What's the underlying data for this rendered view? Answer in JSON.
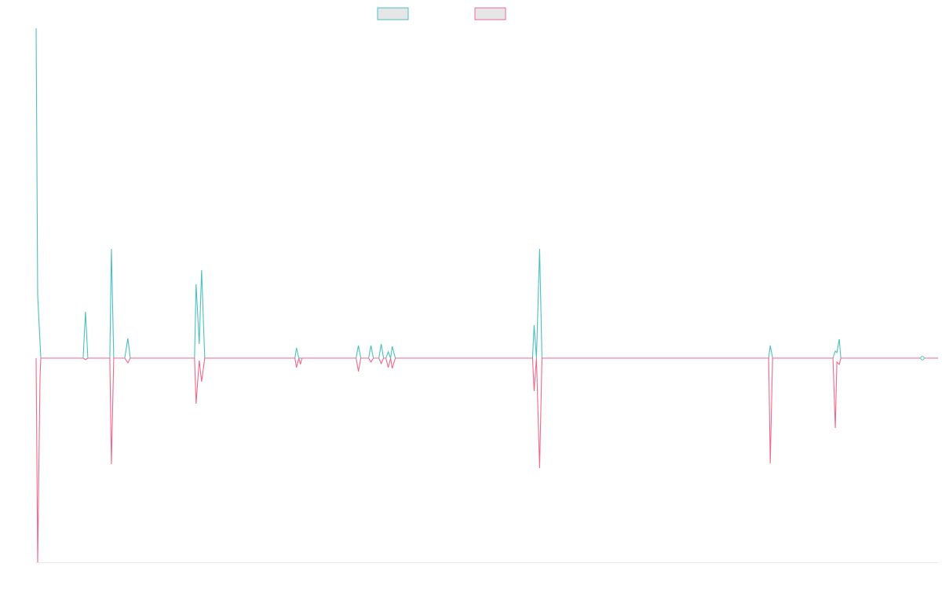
{
  "chart_data": {
    "type": "line",
    "title": "",
    "xlabel": "",
    "ylabel": "",
    "grid": false,
    "legend": "top-center",
    "x_range": [
      0,
      1150
    ],
    "y_range": [
      -260,
      420
    ],
    "series": [
      {
        "color": "#4bc0c0",
        "fill": "#e6e6e6",
        "points": [
          [
            0,
            420
          ],
          [
            2,
            80
          ],
          [
            6,
            0
          ],
          [
            60,
            0
          ],
          [
            63,
            59
          ],
          [
            66,
            0
          ],
          [
            86,
            0
          ],
          [
            90,
            0
          ],
          [
            94,
            0
          ],
          [
            96,
            139
          ],
          [
            99,
            0
          ],
          [
            113,
            0
          ],
          [
            117,
            25
          ],
          [
            120,
            0
          ],
          [
            202,
            0
          ],
          [
            204,
            94
          ],
          [
            208,
            18
          ],
          [
            211,
            112
          ],
          [
            215,
            0
          ],
          [
            330,
            0
          ],
          [
            332,
            13
          ],
          [
            335,
            0
          ],
          [
            337,
            0
          ],
          [
            339,
            0
          ],
          [
            408,
            0
          ],
          [
            411,
            16
          ],
          [
            414,
            0
          ],
          [
            424,
            0
          ],
          [
            427,
            16
          ],
          [
            430,
            0
          ],
          [
            437,
            0
          ],
          [
            440,
            18
          ],
          [
            443,
            0
          ],
          [
            446,
            0
          ],
          [
            449,
            8
          ],
          [
            452,
            0
          ],
          [
            454,
            15
          ],
          [
            458,
            0
          ],
          [
            633,
            0
          ],
          [
            635,
            42
          ],
          [
            638,
            0
          ],
          [
            642,
            139
          ],
          [
            645,
            0
          ],
          [
            934,
            0
          ],
          [
            936,
            16
          ],
          [
            939,
            0
          ],
          [
            1016,
            0
          ],
          [
            1019,
            9
          ],
          [
            1021,
            7
          ],
          [
            1024,
            24
          ],
          [
            1026,
            0
          ],
          [
            1130,
            0
          ],
          [
            1150,
            0
          ]
        ]
      },
      {
        "color": "#f0698c",
        "fill": "#e6e6e6",
        "points": [
          [
            0,
            0
          ],
          [
            2,
            -260
          ],
          [
            5,
            -25
          ],
          [
            6,
            0
          ],
          [
            60,
            0
          ],
          [
            63,
            -2
          ],
          [
            66,
            0
          ],
          [
            86,
            0
          ],
          [
            90,
            0
          ],
          [
            94,
            0
          ],
          [
            96,
            -135
          ],
          [
            99,
            0
          ],
          [
            113,
            0
          ],
          [
            117,
            -6
          ],
          [
            120,
            0
          ],
          [
            202,
            0
          ],
          [
            204,
            -58
          ],
          [
            208,
            -3
          ],
          [
            211,
            -30
          ],
          [
            215,
            0
          ],
          [
            330,
            0
          ],
          [
            332,
            -12
          ],
          [
            335,
            0
          ],
          [
            337,
            -8
          ],
          [
            339,
            0
          ],
          [
            408,
            0
          ],
          [
            411,
            -17
          ],
          [
            414,
            0
          ],
          [
            424,
            0
          ],
          [
            427,
            -5
          ],
          [
            430,
            0
          ],
          [
            437,
            0
          ],
          [
            440,
            -7
          ],
          [
            443,
            0
          ],
          [
            446,
            0
          ],
          [
            449,
            -12
          ],
          [
            452,
            0
          ],
          [
            454,
            -13
          ],
          [
            458,
            0
          ],
          [
            633,
            0
          ],
          [
            635,
            -42
          ],
          [
            638,
            0
          ],
          [
            642,
            -140
          ],
          [
            645,
            0
          ],
          [
            934,
            0
          ],
          [
            936,
            -134
          ],
          [
            939,
            0
          ],
          [
            1016,
            0
          ],
          [
            1019,
            -89
          ],
          [
            1021,
            -5
          ],
          [
            1024,
            -8
          ],
          [
            1026,
            0
          ],
          [
            1130,
            0
          ],
          [
            1150,
            0
          ]
        ]
      }
    ]
  }
}
